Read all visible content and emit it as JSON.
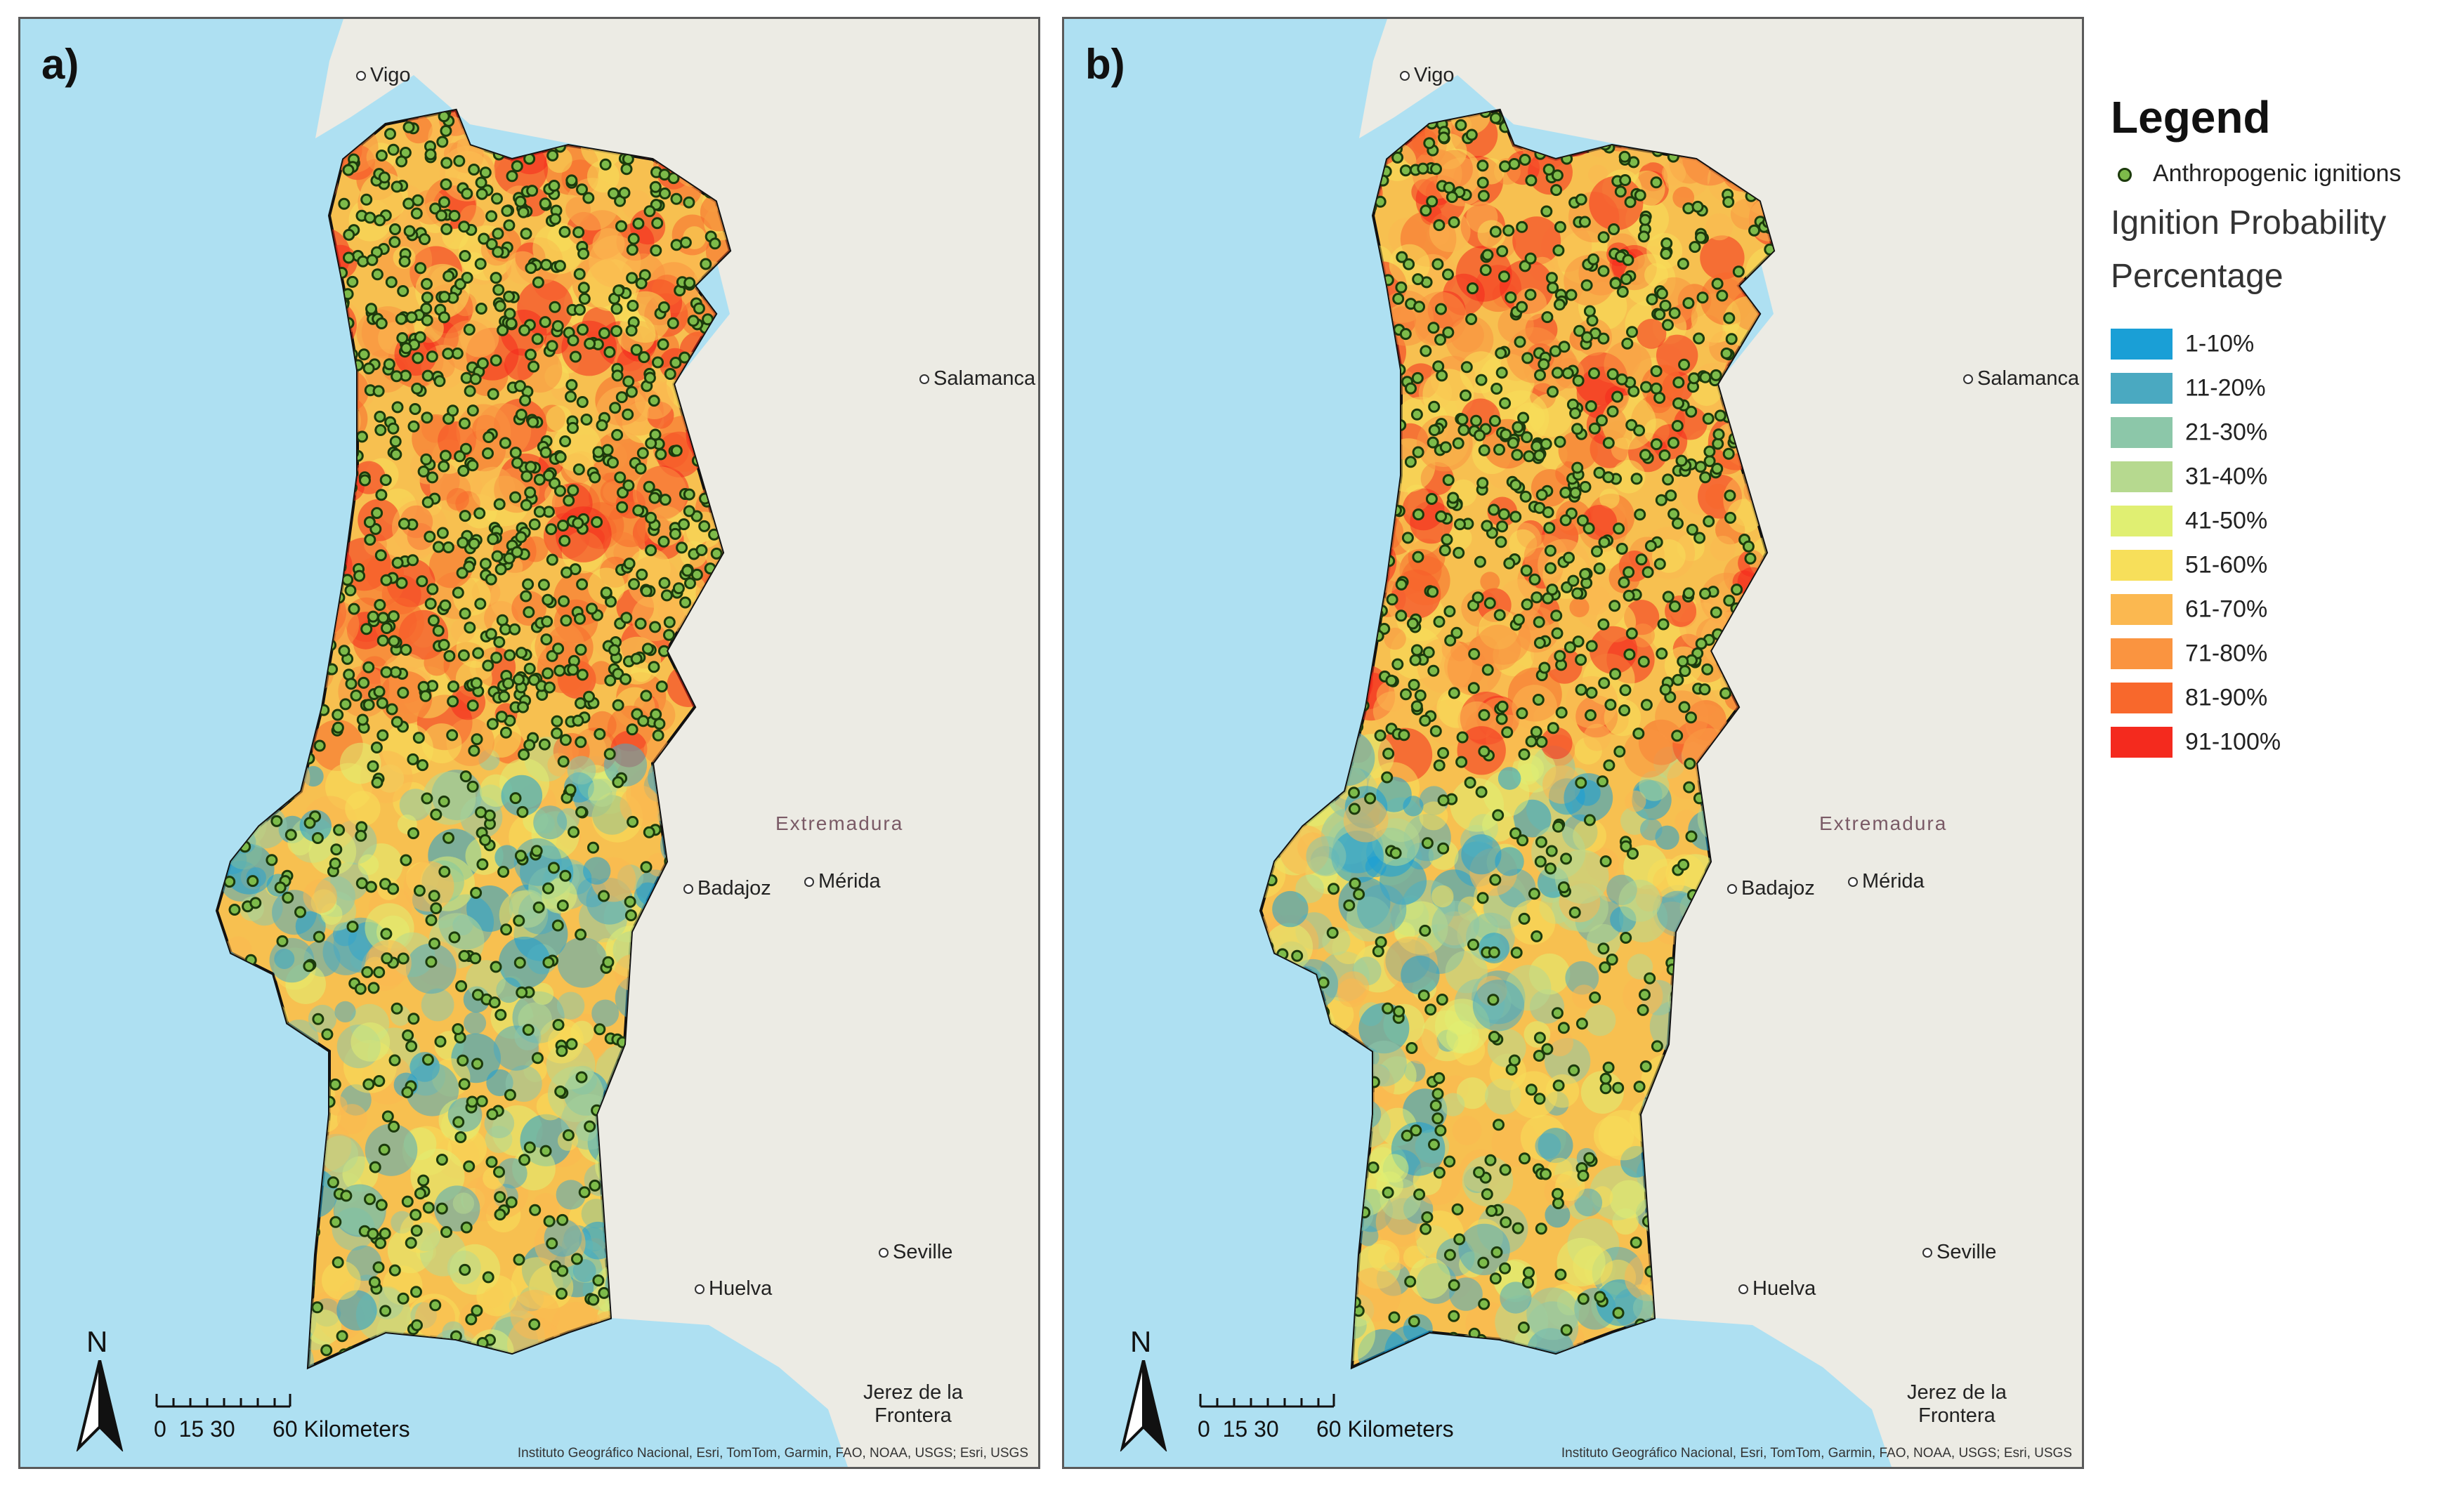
{
  "panels": [
    {
      "label": "a)",
      "places": {
        "vigo": "Vigo",
        "salamanca": "Salamanca",
        "extremadura": "Extremadura",
        "badajoz": "Badajoz",
        "merida": "Mérida",
        "huelva": "Huelva",
        "seville": "Seville",
        "jerez_line1": "Jerez de la",
        "jerez_line2": "Frontera"
      },
      "north_label": "N",
      "scale": {
        "ticks": "0  15 30",
        "end": "60 Kilometers"
      },
      "attribution": "Instituto Geográfico Nacional, Esri, TomTom, Garmin, FAO, NOAA, USGS; Esri, USGS"
    },
    {
      "label": "b)",
      "places": {
        "vigo": "Vigo",
        "salamanca": "Salamanca",
        "extremadura": "Extremadura",
        "badajoz": "Badajoz",
        "merida": "Mérida",
        "huelva": "Huelva",
        "seville": "Seville",
        "jerez_line1": "Jerez de la",
        "jerez_line2": "Frontera"
      },
      "north_label": "N",
      "scale": {
        "ticks": "0  15 30",
        "end": "60 Kilometers"
      },
      "attribution": "Instituto Geográfico Nacional, Esri, TomTom, Garmin, FAO, NOAA, USGS; Esri, USGS"
    }
  ],
  "legend": {
    "title": "Legend",
    "ignitions_label": "Anthropogenic ignitions",
    "ignitions_color": "#7dbb4a",
    "subtitle_1": "Ignition Probability",
    "subtitle_2": "Percentage",
    "classes": [
      {
        "label": "1-10%",
        "color": "#1a9fd6"
      },
      {
        "label": "11-20%",
        "color": "#4aa9c1"
      },
      {
        "label": "21-30%",
        "color": "#8cc7a9"
      },
      {
        "label": "31-40%",
        "color": "#b6d98f"
      },
      {
        "label": "41-50%",
        "color": "#e0ef72"
      },
      {
        "label": "51-60%",
        "color": "#f7df5a"
      },
      {
        "label": "61-70%",
        "color": "#fbb850"
      },
      {
        "label": "71-80%",
        "color": "#fa9440"
      },
      {
        "label": "81-90%",
        "color": "#f8682c"
      },
      {
        "label": "91-100%",
        "color": "#f42a1e"
      }
    ]
  }
}
